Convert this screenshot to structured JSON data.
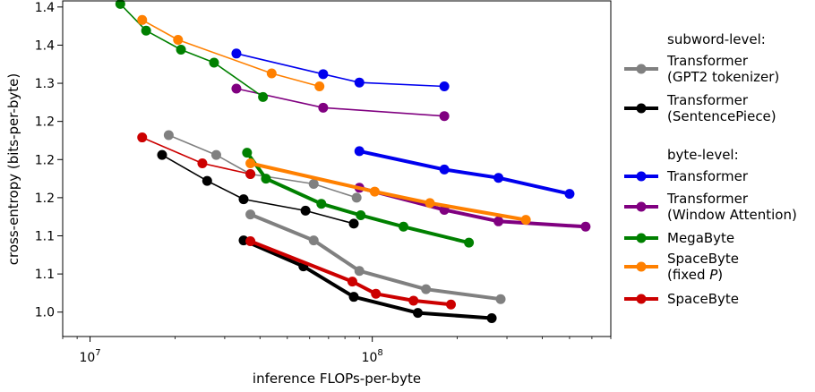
{
  "chart_data": {
    "type": "line",
    "xlabel": "inference FLOPs-per-byte",
    "ylabel": "cross-entropy (bits-per-byte)",
    "x_scale": "log",
    "xlim": [
      8000000.0,
      700000000.0
    ],
    "ylim": [
      0.968,
      1.408
    ],
    "x_ticks": [
      {
        "value": 10000000.0,
        "base": "10",
        "exp": "7"
      },
      {
        "value": 100000000.0,
        "base": "10",
        "exp": "8"
      }
    ],
    "y_ticks": [
      {
        "value": 1.0,
        "label": "1.0"
      },
      {
        "value": 1.05,
        "label": "1.1"
      },
      {
        "value": 1.1,
        "label": "1.1"
      },
      {
        "value": 1.15,
        "label": "1.2"
      },
      {
        "value": 1.2,
        "label": "1.2"
      },
      {
        "value": 1.25,
        "label": "1.2"
      },
      {
        "value": 1.3,
        "label": "1.3"
      },
      {
        "value": 1.35,
        "label": "1.4"
      },
      {
        "value": 1.4,
        "label": "1.4"
      }
    ],
    "legend_placement": "right, outside",
    "legend_groups": [
      {
        "header": "subword-level:",
        "series": [
          2,
          3
        ]
      },
      {
        "header": "byte-level:",
        "series": [
          0,
          1,
          4,
          5,
          6
        ]
      }
    ],
    "series": [
      {
        "name": "Transformer",
        "color": "#0000ee",
        "kind": "byte-level",
        "groups": [
          {
            "x": [
              33000000.0,
              67000000.0,
              90000000.0,
              180000000.0
            ],
            "y": [
              1.339,
              1.312,
              1.301,
              1.296
            ]
          },
          {
            "x": [
              90000000.0,
              180000000.0,
              280000000.0,
              500000000.0
            ],
            "y": [
              1.211,
              1.187,
              1.176,
              1.155
            ]
          }
        ]
      },
      {
        "name": "Transformer (Window Attention)",
        "color": "#800080",
        "kind": "byte-level",
        "groups": [
          {
            "x": [
              33000000.0,
              67000000.0,
              180000000.0
            ],
            "y": [
              1.293,
              1.268,
              1.257
            ]
          },
          {
            "x": [
              90000000.0,
              180000000.0,
              280000000.0,
              570000000.0
            ],
            "y": [
              1.163,
              1.134,
              1.119,
              1.112
            ]
          }
        ]
      },
      {
        "name": "Transformer (GPT2 tokenizer)",
        "color": "#808080",
        "kind": "subword-level",
        "groups": [
          {
            "x": [
              19000000.0,
              28000000.0,
              37000000.0,
              62000000.0,
              88000000.0
            ],
            "y": [
              1.232,
              1.206,
              1.181,
              1.168,
              1.15
            ]
          },
          {
            "x": [
              37000000.0,
              62000000.0,
              90000000.0,
              155000000.0,
              285000000.0
            ],
            "y": [
              1.128,
              1.094,
              1.054,
              1.03,
              1.017
            ]
          }
        ]
      },
      {
        "name": "Transformer (SentencePiece)",
        "color": "#000000",
        "kind": "subword-level",
        "groups": [
          {
            "x": [
              18000000.0,
              26000000.0,
              35000000.0,
              58000000.0,
              86000000.0
            ],
            "y": [
              1.206,
              1.172,
              1.148,
              1.133,
              1.116
            ]
          },
          {
            "x": [
              35000000.0,
              57000000.0,
              86000000.0,
              145000000.0,
              265000000.0
            ],
            "y": [
              1.094,
              1.06,
              1.02,
              0.999,
              0.992
            ]
          }
        ]
      },
      {
        "name": "MegaByte",
        "color": "#008000",
        "kind": "byte-level",
        "groups": [
          {
            "x": [
              12800000.0,
              15800000.0,
              21000000.0,
              27500000.0,
              41000000.0
            ],
            "y": [
              1.404,
              1.369,
              1.344,
              1.327,
              1.282
            ]
          },
          {
            "x": [
              36000000.0,
              42000000.0,
              66000000.0,
              91000000.0,
              129000000.0,
              220000000.0
            ],
            "y": [
              1.209,
              1.175,
              1.142,
              1.127,
              1.112,
              1.091
            ]
          }
        ]
      },
      {
        "name": "SpaceByte (fixed P)",
        "color": "#ff8000",
        "kind": "byte-level",
        "groups": [
          {
            "x": [
              15300000.0,
              20500000.0,
              44000000.0,
              65000000.0
            ],
            "y": [
              1.383,
              1.357,
              1.313,
              1.296
            ]
          },
          {
            "x": [
              37000000.0,
              102000000.0,
              160000000.0,
              350000000.0
            ],
            "y": [
              1.195,
              1.158,
              1.143,
              1.121
            ]
          }
        ]
      },
      {
        "name": "SpaceByte",
        "color": "#cc0000",
        "kind": "byte-level",
        "groups": [
          {
            "x": [
              15300000.0,
              25000000.0,
              37000000.0
            ],
            "y": [
              1.229,
              1.195,
              1.181
            ]
          },
          {
            "x": [
              37000000.0,
              85000000.0,
              103000000.0,
              140000000.0,
              190000000.0
            ],
            "y": [
              1.093,
              1.04,
              1.024,
              1.015,
              1.01
            ]
          }
        ]
      }
    ]
  }
}
